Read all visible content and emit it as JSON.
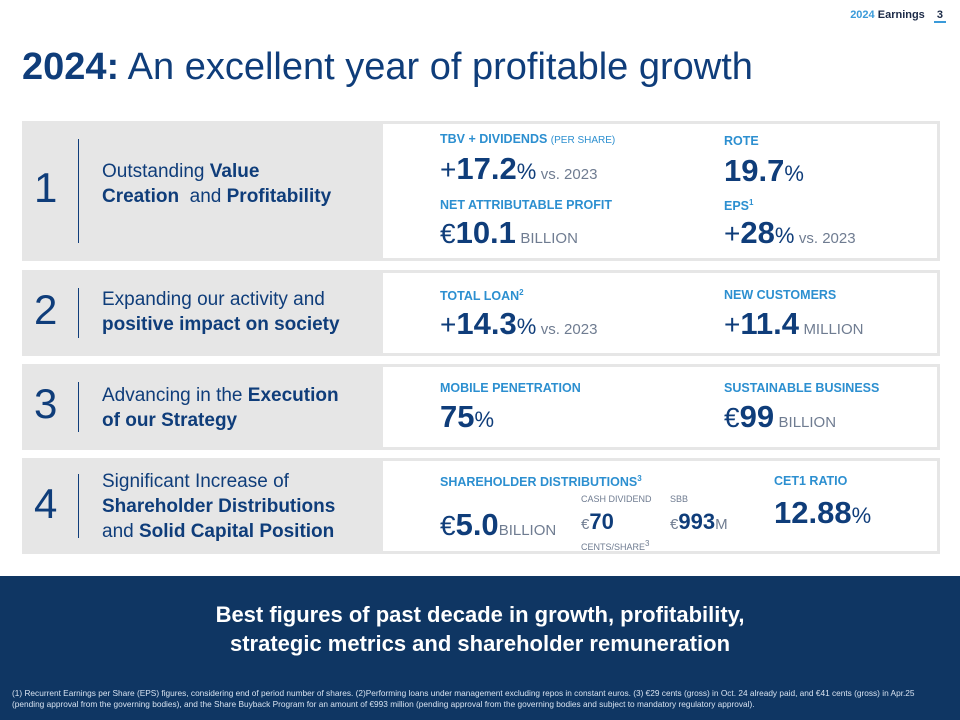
{
  "header": {
    "year": "2024",
    "label": "Earnings",
    "page": "3"
  },
  "title": {
    "bold": "2024:",
    "rest": "An excellent year of profitable growth"
  },
  "rows": [
    {
      "number": "1",
      "title": [
        "Outstanding ",
        "Value",
        "Creation",
        "  and ",
        "Profitability"
      ],
      "kpis": [
        {
          "label": "TBV + DIVIDENDS",
          "label_small": "(PER SHARE)",
          "prefix": "+",
          "value": "17.2",
          "unit": "%",
          "suffix": "vs. 2023"
        },
        {
          "label": "ROTE",
          "prefix": "",
          "value": "19.7",
          "unit": "%",
          "suffix": ""
        },
        {
          "label": "NET ATTRIBUTABLE PROFIT",
          "prefix": "€",
          "value": "10.1",
          "unit": "",
          "suffix": "BILLION"
        },
        {
          "label": "EPS",
          "label_sup": "1",
          "prefix": "+",
          "value": "28",
          "unit": "%",
          "suffix": "vs. 2023"
        }
      ]
    },
    {
      "number": "2",
      "title": [
        "Expanding our activity and",
        "positive impact on society"
      ],
      "kpis": [
        {
          "label": "TOTAL LOAN",
          "label_sup": "2",
          "prefix": "+",
          "value": "14.3",
          "unit": "%",
          "suffix": "vs. 2023"
        },
        {
          "label": "NEW CUSTOMERS",
          "prefix": "+",
          "value": "11.4",
          "unit": "",
          "suffix": "MILLION"
        }
      ]
    },
    {
      "number": "3",
      "title": [
        "Advancing in the ",
        "Execution",
        "of our Strategy"
      ],
      "kpis": [
        {
          "label": "MOBILE PENETRATION",
          "prefix": "",
          "value": "75",
          "unit": "%",
          "suffix": ""
        },
        {
          "label": "SUSTAINABLE BUSINESS",
          "prefix": "€",
          "value": "99",
          "unit": "",
          "suffix": "BILLION"
        }
      ]
    },
    {
      "number": "4",
      "title": [
        "Significant Increase of",
        "Shareholder Distributions",
        "and ",
        "Solid Capital Position"
      ],
      "kpis": [
        {
          "label": "SHAREHOLDER DISTRIBUTIONS",
          "label_sup": "3",
          "prefix": "€",
          "value": "5.0",
          "unit": "",
          "suffix": "BILLION"
        },
        {
          "label": "CET1 RATIO",
          "prefix": "",
          "value": "12.88",
          "unit": "%",
          "suffix": ""
        }
      ],
      "distributions": {
        "cash_label": "CASH DIVIDEND",
        "cash_prefix": "€",
        "cash_value": "70",
        "cash_unit": "CENTS/SHARE",
        "cash_sup": "3",
        "sbb_label": "SBB",
        "sbb_prefix": "€",
        "sbb_value": "993",
        "sbb_unit": "M"
      }
    }
  ],
  "banner": {
    "line1": "Best figures of past decade in growth, profitability,",
    "line2": "strategic metrics and shareholder remuneration"
  },
  "footnote": "(1) Recurrent Earnings per Share (EPS) figures, considering end of period number of shares. (2)Performing loans under management excluding repos in constant euros. (3) €29 cents (gross) in Oct. 24 already paid, and €41 cents (gross) in Apr.25 (pending approval from the governing bodies), and the Share Buyback Program for an amount of €993 million (pending approval from the governing bodies and subject to mandatory regulatory approval).",
  "colors": {
    "navy": "#0f3d7a",
    "accent": "#2c8fd0",
    "banner": "#0f3663",
    "row_bg": "#e6e6e6"
  }
}
